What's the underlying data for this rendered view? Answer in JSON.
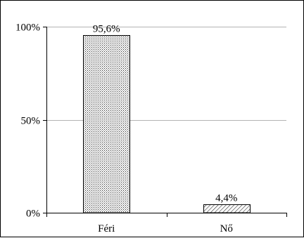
{
  "chart_data": {
    "type": "bar",
    "categories": [
      "Féri",
      "Nő"
    ],
    "values": [
      95.6,
      4.4
    ],
    "data_labels": [
      "95,6%",
      "4,4%"
    ],
    "title": "",
    "xlabel": "",
    "ylabel": "",
    "ylim": [
      0,
      100
    ],
    "yticks": [
      0,
      50,
      100
    ],
    "ytick_labels": [
      "0%",
      "50%",
      "100%"
    ],
    "grid": true,
    "legend": "none",
    "bar_fills": [
      "dotted",
      "hatched"
    ],
    "colors": {
      "grid": "#b3b3b3",
      "axis": "#000000",
      "bar_edge": "#000000"
    }
  }
}
